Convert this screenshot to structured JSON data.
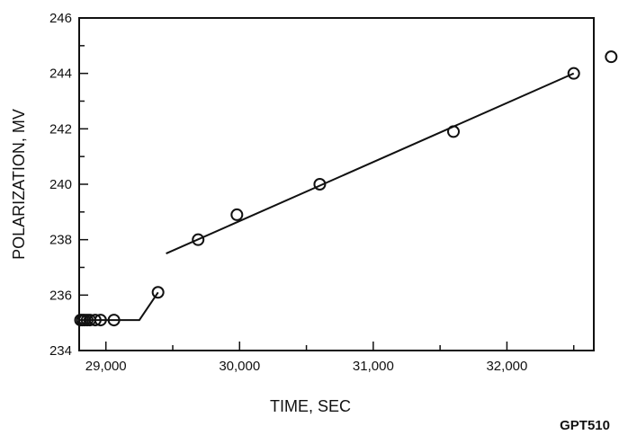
{
  "figure_id": "GPT510",
  "chart_data": {
    "type": "scatter",
    "title": "",
    "xlabel": "TIME, SEC",
    "ylabel": "POLARIZATION, MV",
    "xlim": [
      28800,
      32650
    ],
    "ylim": [
      234,
      246
    ],
    "x_ticks": [
      29000,
      30000,
      31000,
      32000
    ],
    "x_tick_labels": [
      "29,000",
      "30,000",
      "31,000",
      "32,000"
    ],
    "y_ticks": [
      234,
      236,
      238,
      240,
      242,
      244,
      246
    ],
    "y_tick_labels": [
      "234",
      "236",
      "238",
      "240",
      "242",
      "244",
      "246"
    ],
    "grid": false,
    "series": [
      {
        "markers": "open-circle",
        "points": [
          {
            "x": 28810,
            "y": 235.1
          },
          {
            "x": 28825,
            "y": 235.1
          },
          {
            "x": 28840,
            "y": 235.1
          },
          {
            "x": 28860,
            "y": 235.1
          },
          {
            "x": 28880,
            "y": 235.1
          },
          {
            "x": 28920,
            "y": 235.1
          },
          {
            "x": 28960,
            "y": 235.1
          },
          {
            "x": 29060,
            "y": 235.1
          },
          {
            "x": 29390,
            "y": 236.1
          },
          {
            "x": 29690,
            "y": 238.0
          },
          {
            "x": 29980,
            "y": 238.9
          },
          {
            "x": 30600,
            "y": 240.0
          },
          {
            "x": 31600,
            "y": 241.9
          },
          {
            "x": 32500,
            "y": 244.0
          },
          {
            "x": 32780,
            "y": 244.6
          }
        ]
      }
    ],
    "lines": [
      {
        "kind": "baseline",
        "points": [
          [
            28800,
            235.1
          ],
          [
            29250,
            235.1
          ],
          [
            29390,
            236.1
          ]
        ]
      },
      {
        "kind": "fit",
        "points": [
          [
            29450,
            237.5
          ],
          [
            32500,
            244.0
          ]
        ]
      }
    ],
    "annotations": []
  }
}
